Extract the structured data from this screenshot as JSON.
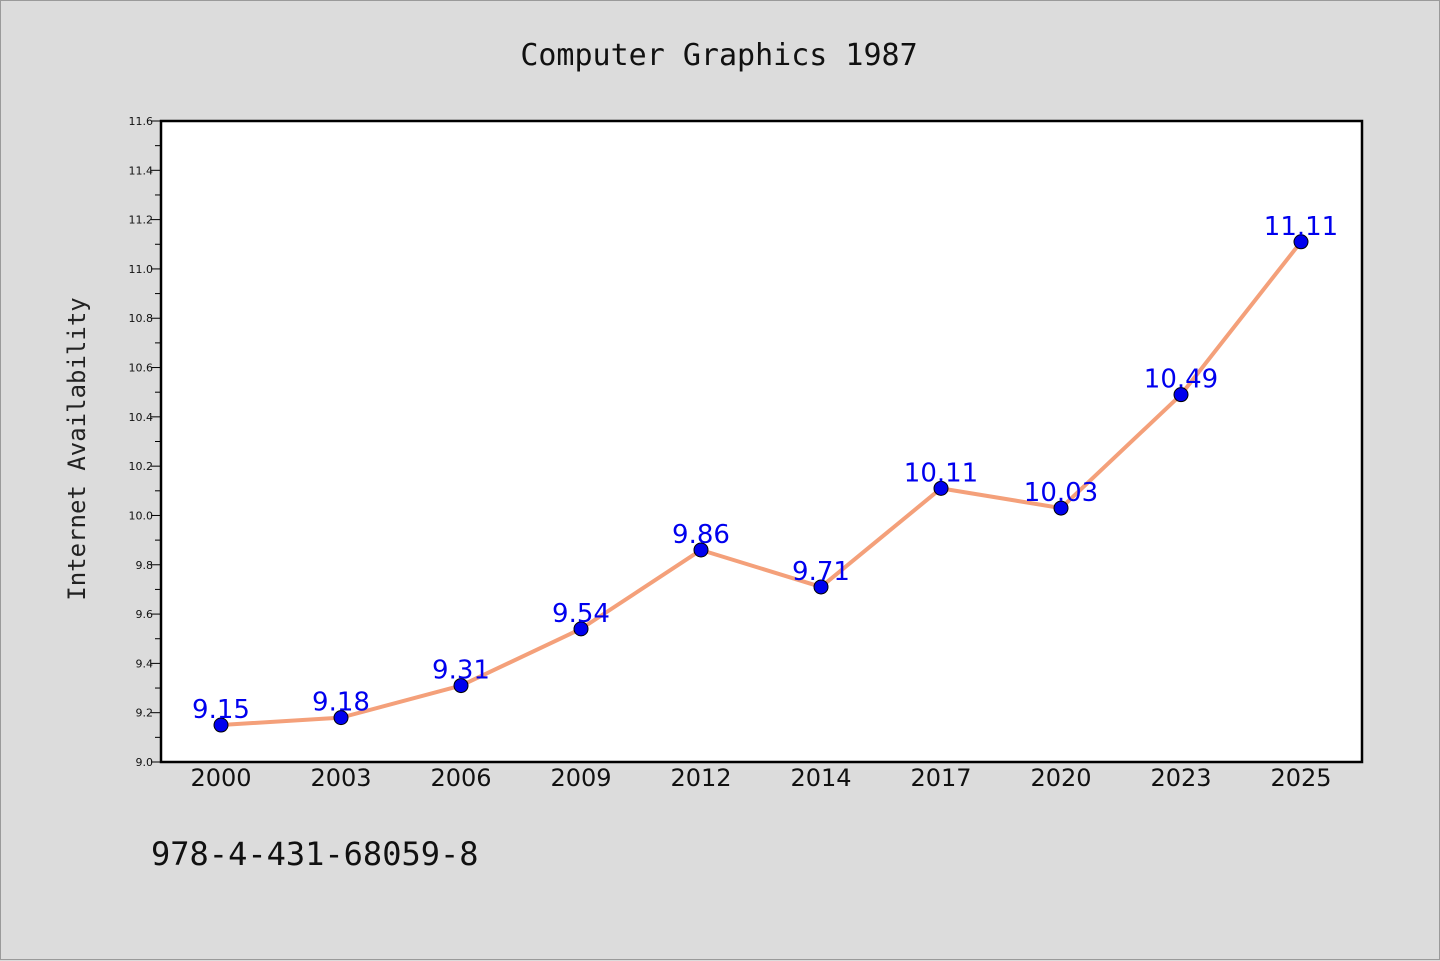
{
  "chart_data": {
    "type": "line",
    "title": "Computer Graphics 1987",
    "ylabel": "Internet Availability",
    "xlabel": "",
    "categories": [
      "2000",
      "2003",
      "2006",
      "2009",
      "2012",
      "2014",
      "2017",
      "2020",
      "2023",
      "2025"
    ],
    "series": [
      {
        "values": [
          9.15,
          9.18,
          9.31,
          9.54,
          9.86,
          9.71,
          10.11,
          10.03,
          10.49,
          11.11
        ],
        "line_color": "#f4a07a",
        "marker_color": "#0000ee"
      }
    ],
    "data_labels": [
      "9.15",
      "9.18",
      "9.31",
      "9.54",
      "9.86",
      "9.71",
      "10.11",
      "10.03",
      "10.49",
      "11.11"
    ],
    "ylim": [
      9.0,
      11.6
    ],
    "yticks": [
      "9.0",
      "9.2",
      "9.4",
      "9.6",
      "9.8",
      "10.0",
      "10.2",
      "10.4",
      "10.6",
      "10.8",
      "11.0",
      "11.2",
      "11.4",
      "11.6"
    ],
    "grid": false,
    "legend": "none"
  },
  "footer": {
    "isbn": "978-4-431-68059-8"
  },
  "colors": {
    "background": "#dcdcdc",
    "plot_background": "#ffffff",
    "axis": "#000000"
  }
}
